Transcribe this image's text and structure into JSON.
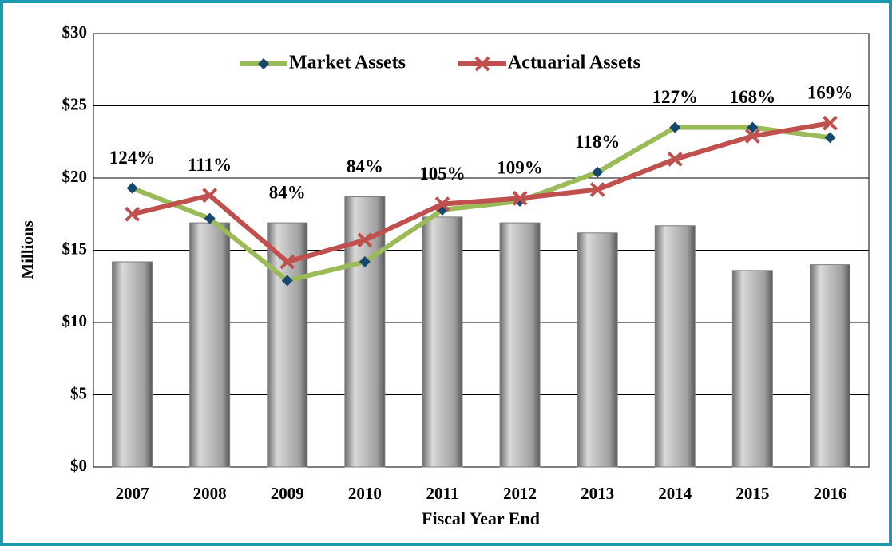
{
  "chart_data": {
    "type": "bar-line",
    "x_label": "Fiscal Year End",
    "y_label": "Millions",
    "categories": [
      "2007",
      "2008",
      "2009",
      "2010",
      "2011",
      "2012",
      "2013",
      "2014",
      "2015",
      "2016"
    ],
    "bars": {
      "color": "#a6a6a6",
      "values": [
        14.2,
        16.9,
        16.9,
        18.7,
        17.3,
        16.9,
        16.2,
        16.7,
        13.6,
        14.0
      ]
    },
    "series": [
      {
        "name": "Market Assets",
        "color": "#9bbb59",
        "marker_color": "#17476e",
        "marker": "diamond",
        "values": [
          19.3,
          17.2,
          12.9,
          14.2,
          17.8,
          18.4,
          20.4,
          23.5,
          23.5,
          22.8
        ]
      },
      {
        "name": "Actuarial Assets",
        "color": "#c0504d",
        "marker_color": "#c0504d",
        "marker": "x",
        "values": [
          17.5,
          18.8,
          14.2,
          15.7,
          18.2,
          18.6,
          19.2,
          21.3,
          22.9,
          23.8
        ]
      }
    ],
    "ratio": {
      "values": [
        124,
        111,
        84,
        84,
        105,
        109,
        118,
        127,
        168,
        169
      ],
      "value_labels": [
        "124%",
        "111%",
        "84%",
        "84%",
        "105%",
        "109%",
        "118%",
        "127%",
        "168%",
        "169%"
      ]
    },
    "ylim": [
      0,
      30
    ],
    "yticks": [
      {
        "value": 0,
        "label": "$0"
      },
      {
        "value": 5,
        "label": "$5"
      },
      {
        "value": 10,
        "label": "$10"
      },
      {
        "value": 15,
        "label": "$15"
      },
      {
        "value": 20,
        "label": "$20"
      },
      {
        "value": 25,
        "label": "$25"
      },
      {
        "value": 30,
        "label": "$30"
      }
    ],
    "grid": true,
    "legend": "top"
  }
}
